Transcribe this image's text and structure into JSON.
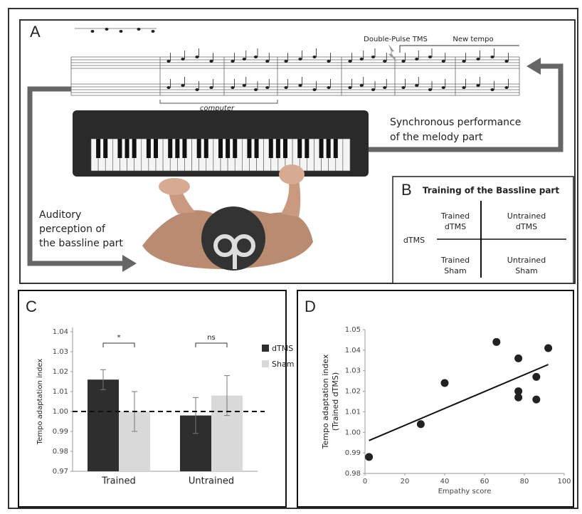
{
  "panel_a": {
    "label": "A",
    "tms_label": "Double-Pulse TMS",
    "tempo_label": "New tempo",
    "computer_label": "computer",
    "melody_text": [
      "Synchronous performance",
      "of the melody part"
    ],
    "bassline_text": [
      "Auditory",
      "perception of",
      "the bassline part"
    ]
  },
  "panel_b": {
    "label": "B",
    "title": "Training of the Bassline part",
    "row_label": "dTMS",
    "cells": [
      [
        [
          "Trained",
          "dTMS"
        ],
        [
          "Untrained",
          "dTMS"
        ]
      ],
      [
        [
          "Trained",
          "Sham"
        ],
        [
          "Untrained",
          "Sham"
        ]
      ]
    ]
  },
  "chart_data": [
    {
      "panel_label": "C",
      "type": "bar",
      "y_label": "Tempo adaptation index",
      "categories": [
        "Trained",
        "Untrained"
      ],
      "series": [
        {
          "name": "dTMS",
          "color": "#2e2e2e",
          "values": [
            1.016,
            0.998
          ],
          "errors": [
            0.005,
            0.009
          ]
        },
        {
          "name": "Sham",
          "color": "#d9d9d9",
          "values": [
            1.0,
            1.008
          ],
          "errors": [
            0.01,
            0.01
          ]
        }
      ],
      "ylim": [
        0.97,
        1.04
      ],
      "yticks": [
        0.97,
        0.98,
        0.99,
        {
          "value": 1,
          "label": "1.00"
        },
        1.01,
        1.02,
        1.03,
        1.04
      ],
      "reference_line": 1,
      "significance": [
        "*",
        "ns"
      ],
      "legend": "right"
    },
    {
      "panel_label": "D",
      "type": "scatter",
      "x_label": "Empathy score",
      "y_label": [
        "Tempo adaptation index",
        "(Trained dTMS)"
      ],
      "x": [
        2,
        28,
        40,
        66,
        77,
        77,
        77,
        86,
        86,
        92
      ],
      "values": [
        0.988,
        1.004,
        1.024,
        1.044,
        1.036,
        1.02,
        1.017,
        1.027,
        1.016,
        1.041
      ],
      "color": "#222222",
      "xlim": [
        0,
        100
      ],
      "xticks": [
        0,
        20,
        40,
        60,
        80,
        100
      ],
      "ylim": [
        0.98,
        1.05
      ],
      "yticks": [
        0.98,
        0.99,
        {
          "value": 1,
          "label": "1.00"
        },
        1.01,
        1.02,
        1.03,
        1.04,
        1.05
      ],
      "trend_line": {
        "x": [
          2,
          92
        ],
        "y": [
          0.996,
          1.033
        ]
      }
    }
  ]
}
